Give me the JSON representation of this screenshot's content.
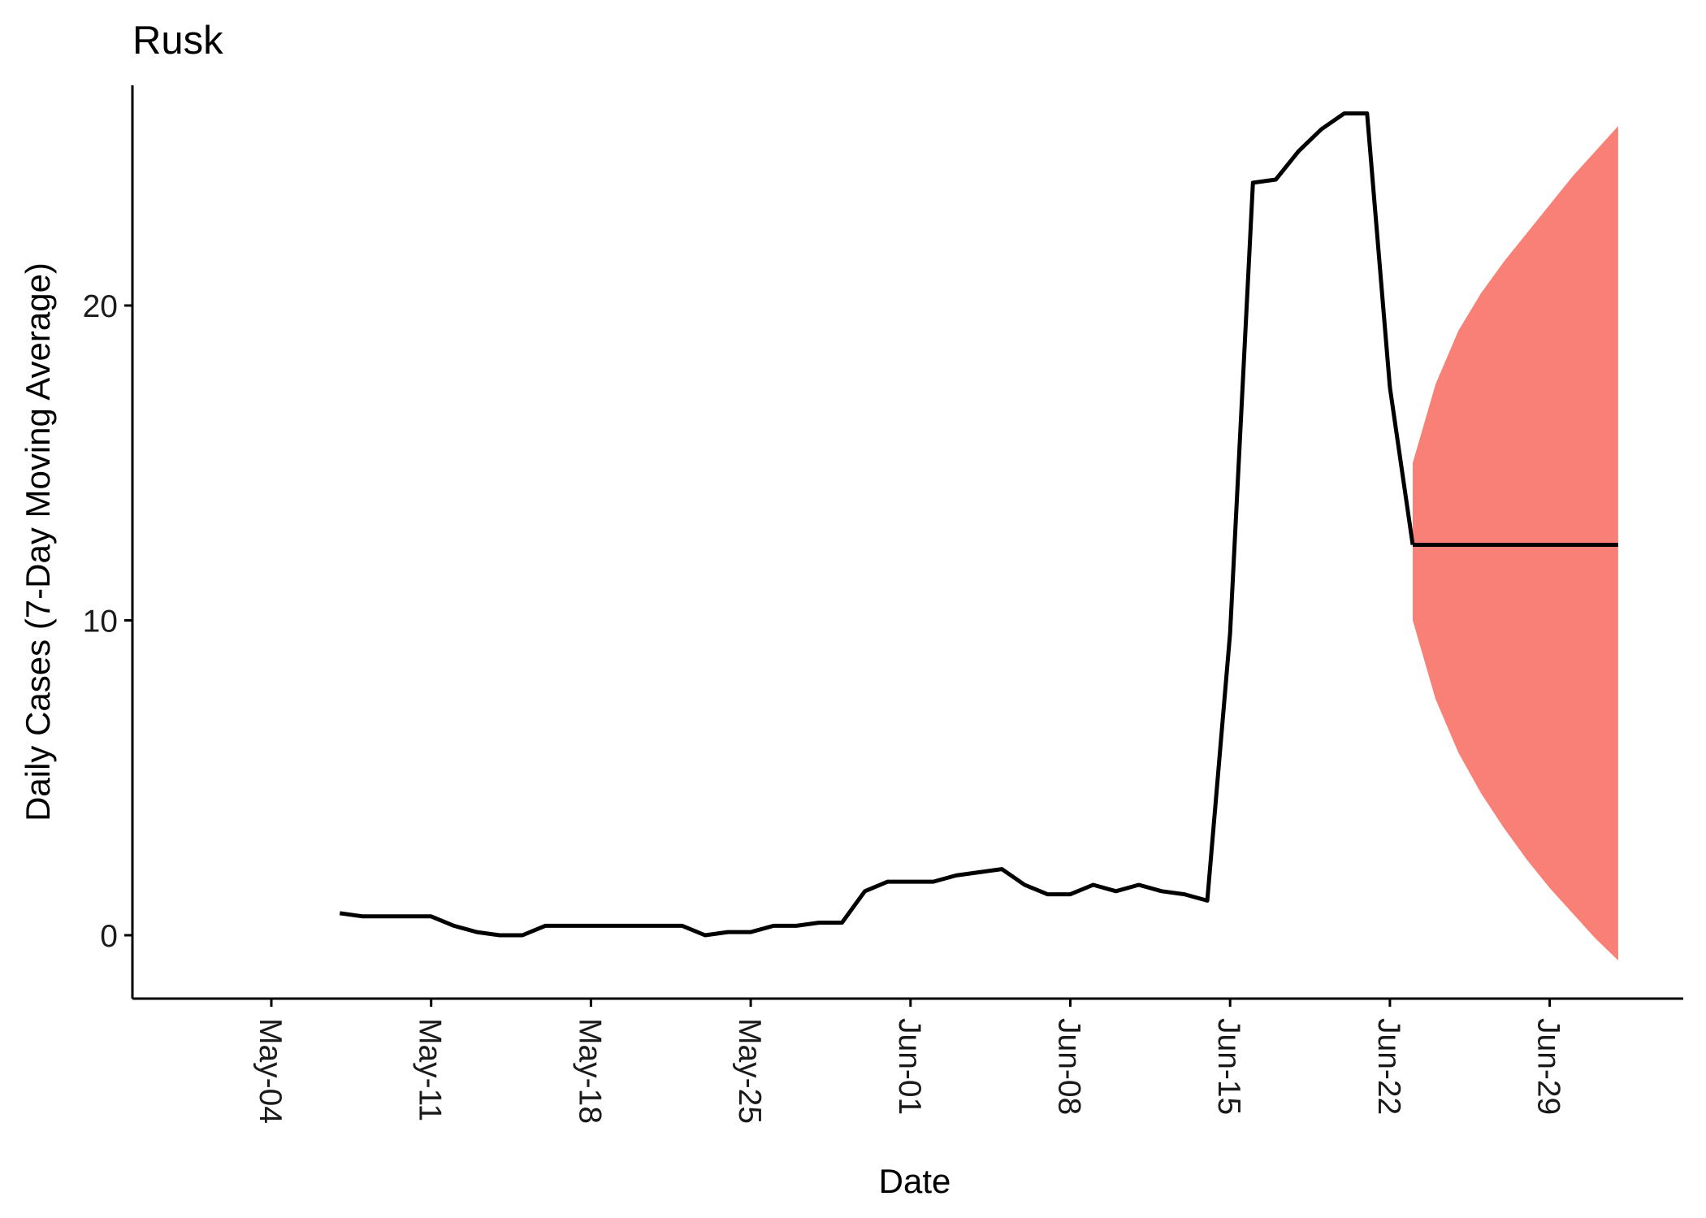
{
  "chart_data": {
    "type": "line",
    "title": "Rusk",
    "xlabel": "Date",
    "ylabel": "Daily Cases (7-Day Moving Average)",
    "x_tick_labels": [
      "May-04",
      "May-11",
      "May-18",
      "May-25",
      "Jun-01",
      "Jun-08",
      "Jun-15",
      "Jun-22",
      "Jun-29"
    ],
    "y_tick_labels": [
      "0",
      "10",
      "20"
    ],
    "y_ticks": [
      0,
      10,
      20
    ],
    "xlim": [
      "2020-04-29",
      "2020-07-06"
    ],
    "ylim": [
      -2,
      27
    ],
    "grid": false,
    "legend": "none",
    "series": [
      {
        "x": [
          "2020-05-07",
          "2020-05-08",
          "2020-05-09",
          "2020-05-10",
          "2020-05-11",
          "2020-05-12",
          "2020-05-13",
          "2020-05-14",
          "2020-05-15",
          "2020-05-16",
          "2020-05-17",
          "2020-05-18",
          "2020-05-19",
          "2020-05-20",
          "2020-05-21",
          "2020-05-22",
          "2020-05-23",
          "2020-05-24",
          "2020-05-25",
          "2020-05-26",
          "2020-05-27",
          "2020-05-28",
          "2020-05-29",
          "2020-05-30",
          "2020-05-31",
          "2020-06-01",
          "2020-06-02",
          "2020-06-03",
          "2020-06-04",
          "2020-06-05",
          "2020-06-06",
          "2020-06-07",
          "2020-06-08",
          "2020-06-09",
          "2020-06-10",
          "2020-06-11",
          "2020-06-12",
          "2020-06-13",
          "2020-06-14",
          "2020-06-15",
          "2020-06-16",
          "2020-06-17",
          "2020-06-18",
          "2020-06-19",
          "2020-06-20",
          "2020-06-21",
          "2020-06-22",
          "2020-06-23"
        ],
        "values": [
          0.7,
          0.6,
          0.6,
          0.6,
          0.6,
          0.3,
          0.1,
          0,
          0,
          0.3,
          0.3,
          0.3,
          0.3,
          0.3,
          0.3,
          0.3,
          0,
          0.1,
          0.1,
          0.3,
          0.3,
          0.4,
          0.4,
          1.4,
          1.7,
          1.7,
          1.7,
          1.9,
          2.0,
          2.1,
          1.6,
          1.3,
          1.3,
          1.6,
          1.4,
          1.6,
          1.4,
          1.3,
          1.1,
          9.6,
          23.9,
          24.0,
          24.9,
          25.6,
          26.1,
          26.1,
          17.4,
          12.4
        ],
        "color": "#000000"
      },
      {
        "x": [
          "2020-06-23",
          "2020-07-02"
        ],
        "values": [
          12.4,
          12.4
        ],
        "color": "#000000"
      }
    ],
    "bands": [
      {
        "x": [
          "2020-06-23",
          "2020-06-24",
          "2020-06-25",
          "2020-06-26",
          "2020-06-27",
          "2020-06-28",
          "2020-06-29",
          "2020-06-30",
          "2020-07-01",
          "2020-07-02"
        ],
        "lower": [
          10.0,
          7.5,
          5.8,
          4.5,
          3.4,
          2.4,
          1.5,
          0.7,
          -0.1,
          -0.8
        ],
        "upper": [
          15.0,
          17.5,
          19.2,
          20.4,
          21.4,
          22.3,
          23.2,
          24.1,
          24.9,
          25.7
        ],
        "color": "#f8766d"
      }
    ]
  }
}
